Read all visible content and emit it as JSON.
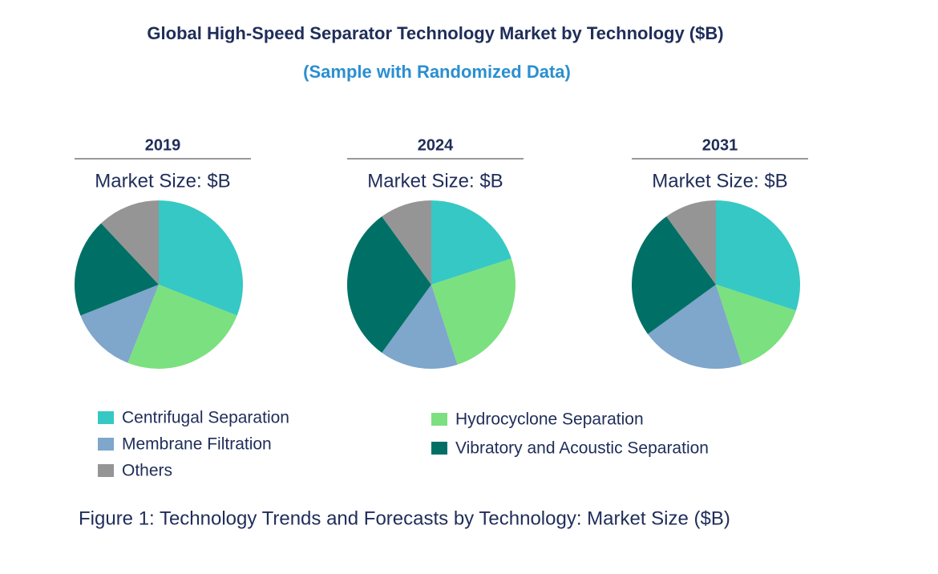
{
  "title": "Global High-Speed Separator Technology Market by Technology ($B)",
  "subtitle": "(Sample with Randomized Data)",
  "caption": "Figure 1: Technology Trends and Forecasts by Technology: Market Size ($B)",
  "chart_data": [
    {
      "type": "pie",
      "title": "2019",
      "subtitle": "Market Size: $B",
      "categories": [
        "Centrifugal Separation",
        "Hydrocyclone Separation",
        "Membrane Filtration",
        "Vibratory and Acoustic Separation",
        "Others"
      ],
      "colors": [
        "#36c8c4",
        "#7be07f",
        "#7fa6cb",
        "#007066",
        "#959595"
      ],
      "values": [
        31,
        25,
        13,
        19,
        12
      ]
    },
    {
      "type": "pie",
      "title": "2024",
      "subtitle": "Market Size: $B",
      "categories": [
        "Centrifugal Separation",
        "Hydrocyclone Separation",
        "Membrane Filtration",
        "Vibratory and Acoustic Separation",
        "Others"
      ],
      "colors": [
        "#36c8c4",
        "#7be07f",
        "#7fa6cb",
        "#007066",
        "#959595"
      ],
      "values": [
        20,
        25,
        15,
        30,
        10
      ]
    },
    {
      "type": "pie",
      "title": "2031",
      "subtitle": "Market Size: $B",
      "categories": [
        "Centrifugal Separation",
        "Hydrocyclone Separation",
        "Membrane Filtration",
        "Vibratory and Acoustic Separation",
        "Others"
      ],
      "colors": [
        "#36c8c4",
        "#7be07f",
        "#7fa6cb",
        "#007066",
        "#959595"
      ],
      "values": [
        30,
        15,
        20,
        25,
        10
      ]
    }
  ]
}
